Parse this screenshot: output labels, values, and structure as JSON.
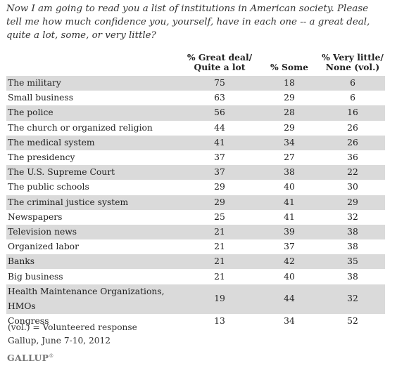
{
  "question": "Now I am going to read you a list of institutions in American society. Please tell me how much confidence you, yourself, have in each one -- a great deal, quite a lot, some, or very little?",
  "headers": {
    "great_line1": "% Great deal/",
    "great_line2": "Quite a lot",
    "some": "% Some",
    "little_line1": "% Very little/",
    "little_line2": "None (vol.)"
  },
  "chart_data": {
    "type": "table",
    "columns": [
      "% Great deal/ Quite a lot",
      "% Some",
      "% Very little/ None (vol.)"
    ],
    "rows": [
      {
        "institution": "The military",
        "great": 75,
        "some": 18,
        "little": 6
      },
      {
        "institution": "Small business",
        "great": 63,
        "some": 29,
        "little": 6
      },
      {
        "institution": "The police",
        "great": 56,
        "some": 28,
        "little": 16
      },
      {
        "institution": "The church or organized religion",
        "great": 44,
        "some": 29,
        "little": 26
      },
      {
        "institution": "The medical system",
        "great": 41,
        "some": 34,
        "little": 26
      },
      {
        "institution": "The presidency",
        "great": 37,
        "some": 27,
        "little": 36
      },
      {
        "institution": "The U.S. Supreme Court",
        "great": 37,
        "some": 38,
        "little": 22
      },
      {
        "institution": "The public schools",
        "great": 29,
        "some": 40,
        "little": 30
      },
      {
        "institution": "The criminal justice system",
        "great": 29,
        "some": 41,
        "little": 29
      },
      {
        "institution": "Newspapers",
        "great": 25,
        "some": 41,
        "little": 32
      },
      {
        "institution": "Television news",
        "great": 21,
        "some": 39,
        "little": 38
      },
      {
        "institution": "Organized labor",
        "great": 21,
        "some": 37,
        "little": 38
      },
      {
        "institution": "Banks",
        "great": 21,
        "some": 42,
        "little": 35
      },
      {
        "institution": "Big business",
        "great": 21,
        "some": 40,
        "little": 38
      },
      {
        "institution": "Health Maintenance Organizations, HMOs",
        "great": 19,
        "some": 44,
        "little": 32
      },
      {
        "institution": "Congress",
        "great": 13,
        "some": 34,
        "little": 52
      }
    ]
  },
  "footnote": {
    "vol_note": "(vol.) = Volunteered response",
    "source": "Gallup, June 7-10, 2012"
  },
  "logo": {
    "text": "GALLUP",
    "mark": "®"
  }
}
